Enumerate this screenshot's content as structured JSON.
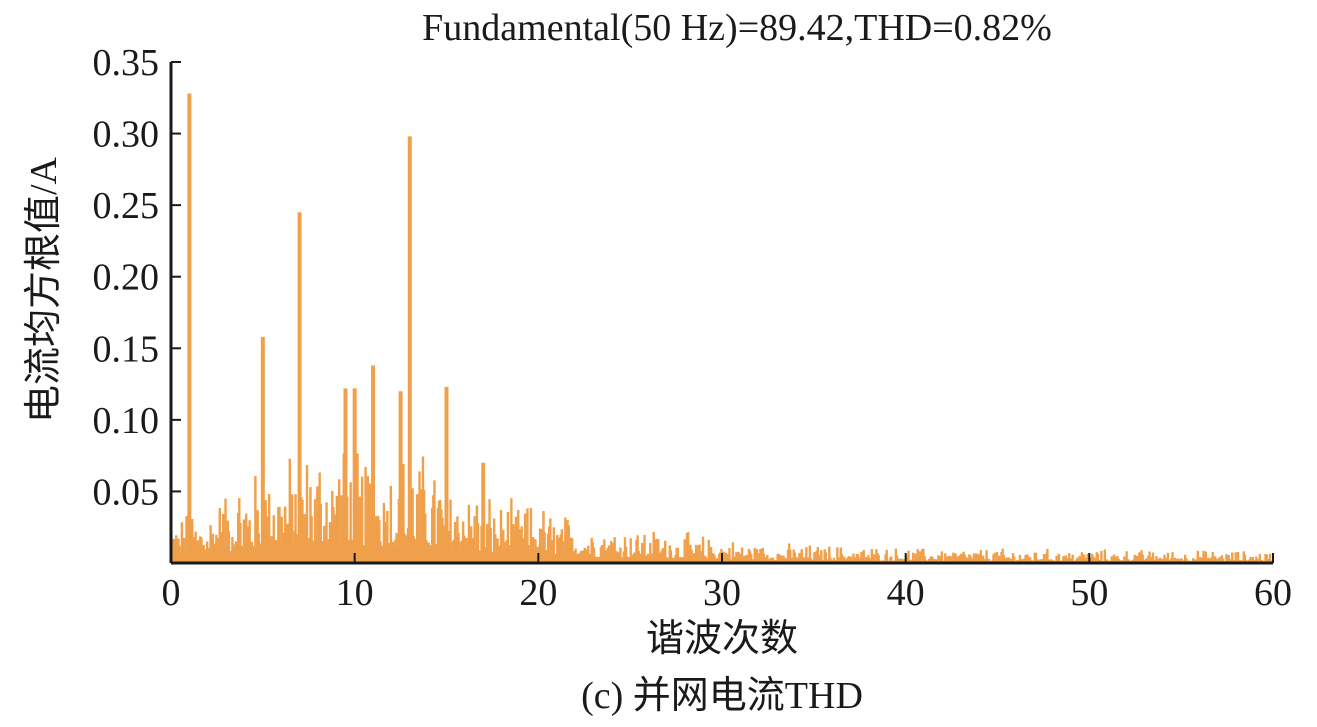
{
  "chart_data": {
    "type": "bar",
    "title": "Fundamental(50 Hz)=89.42,THD=0.82%",
    "xlabel": "谐波次数",
    "ylabel": "电流均方根值/A",
    "caption": "(c) 并网电流THD",
    "xlim": [
      0,
      60
    ],
    "ylim": [
      0,
      0.35
    ],
    "xticks": [
      0,
      10,
      20,
      30,
      40,
      50,
      60
    ],
    "yticks": [
      0.05,
      0.1,
      0.15,
      0.2,
      0.25,
      0.3,
      0.35
    ],
    "ytick_labels": [
      "0.05",
      "0.10",
      "0.15",
      "0.20",
      "0.25",
      "0.30",
      "0.35"
    ],
    "bar_color": "#F0A04A",
    "grid": false,
    "peaks": [
      {
        "x": 1,
        "y": 0.328
      },
      {
        "x": 5,
        "y": 0.158
      },
      {
        "x": 7,
        "y": 0.245
      },
      {
        "x": 9.5,
        "y": 0.122
      },
      {
        "x": 10,
        "y": 0.122
      },
      {
        "x": 11,
        "y": 0.138
      },
      {
        "x": 12.5,
        "y": 0.12
      },
      {
        "x": 13,
        "y": 0.298
      },
      {
        "x": 15,
        "y": 0.123
      },
      {
        "x": 17,
        "y": 0.07
      }
    ],
    "envelope": [
      {
        "x": 0,
        "y": 0.03
      },
      {
        "x": 2,
        "y": 0.04
      },
      {
        "x": 4,
        "y": 0.06
      },
      {
        "x": 6,
        "y": 0.07
      },
      {
        "x": 8,
        "y": 0.08
      },
      {
        "x": 10,
        "y": 0.08
      },
      {
        "x": 12,
        "y": 0.075
      },
      {
        "x": 14,
        "y": 0.075
      },
      {
        "x": 16,
        "y": 0.06
      },
      {
        "x": 18,
        "y": 0.04
      },
      {
        "x": 20,
        "y": 0.04
      },
      {
        "x": 22,
        "y": 0.03
      },
      {
        "x": 25,
        "y": 0.025
      },
      {
        "x": 28,
        "y": 0.02
      },
      {
        "x": 32,
        "y": 0.013
      },
      {
        "x": 36,
        "y": 0.012
      },
      {
        "x": 40,
        "y": 0.01
      },
      {
        "x": 50,
        "y": 0.009
      },
      {
        "x": 60,
        "y": 0.008
      }
    ],
    "samples_per_order": 16
  }
}
